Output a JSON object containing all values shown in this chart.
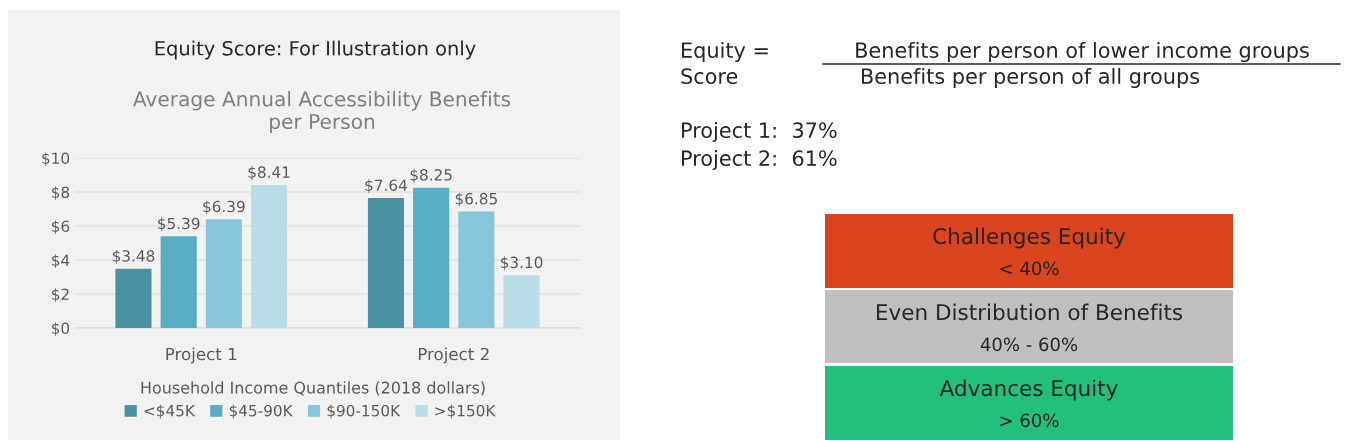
{
  "chart_data": [
    {
      "type": "bar",
      "title": "Equity Score: For Illustration only",
      "subtitle": "Average Annual Accessibility Benefits\nper Person",
      "xlabel": "Household Income Quantiles (2018 dollars)",
      "categories": [
        "Project 1",
        "Project 2"
      ],
      "series": [
        {
          "name": "<$45K",
          "color": "#4a92a3",
          "values": [
            3.48,
            7.64
          ],
          "value_labels": [
            "$3.48",
            "$7.64"
          ]
        },
        {
          "name": "$45-90K",
          "color": "#58adc4",
          "values": [
            5.39,
            8.25
          ],
          "value_labels": [
            "$5.39",
            "$8.25"
          ]
        },
        {
          "name": "$90-150K",
          "color": "#85c6da",
          "values": [
            6.39,
            6.85
          ],
          "value_labels": [
            "$6.39",
            "$6.85"
          ]
        },
        {
          "name": ">$150K",
          "color": "#b9dde7",
          "values": [
            8.41,
            3.1
          ],
          "value_labels": [
            "$8.41",
            "$3.10"
          ]
        }
      ],
      "ylim": [
        0,
        10
      ],
      "yticks": [
        {
          "value": 0,
          "label": "$0"
        },
        {
          "value": 2,
          "label": "$2"
        },
        {
          "value": 4,
          "label": "$4"
        },
        {
          "value": 6,
          "label": "$6"
        },
        {
          "value": 8,
          "label": "$8"
        },
        {
          "value": 10,
          "label": "$10"
        }
      ],
      "grid": "y",
      "legend": "bottom"
    },
    {
      "type": "other",
      "annotations": [
        "Equity =",
        "Score",
        "Benefits per person of lower income groups",
        "Benefits per person of all groups",
        "Project 1:  37%",
        "Project 2:  61%",
        "Challenges Equity",
        "< 40%",
        "Even Distribution of Benefits",
        "40% - 60%",
        "Advances Equity",
        "> 60%"
      ],
      "colors": [
        "#d9431e",
        "#bfbfbf",
        "#22c07a"
      ]
    }
  ]
}
